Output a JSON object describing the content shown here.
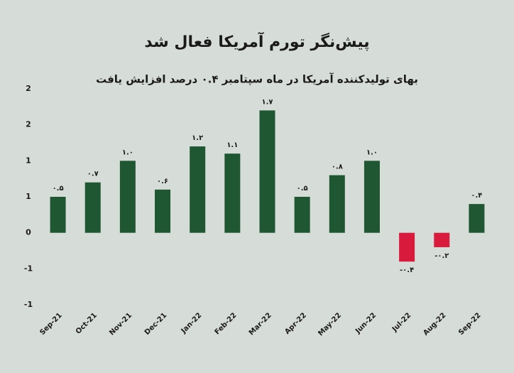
{
  "chart_data": {
    "type": "bar",
    "title": "پیش‌نگر تورم آمریکا فعال شد",
    "subtitle": "بهای تولیدکننده آمریکا در ماه سپتامبر ۰.۴ درصد افزایش یافت",
    "categories": [
      "Sep-21",
      "Oct-21",
      "Nov-21",
      "Dec-21",
      "Jan-22",
      "Feb-22",
      "Mar-22",
      "Apr-22",
      "May-22",
      "Jun-22",
      "Jul-22",
      "Aug-22",
      "Sep-22"
    ],
    "values": [
      0.5,
      0.7,
      1.0,
      0.6,
      1.2,
      1.1,
      1.7,
      0.5,
      0.8,
      1.0,
      -0.4,
      -0.2,
      0.4
    ],
    "value_labels": [
      "۰.۵",
      "۰.۷",
      "۱.۰",
      "۰.۶",
      "۱.۲",
      "۱.۱",
      "۱.۷",
      "۰.۵",
      "۰.۸",
      "۱.۰",
      "-۰.۴",
      "-۰.۲",
      "۰.۴"
    ],
    "color": "#1f5732",
    "negative_color": "#d81a3c",
    "ylim": [
      -1,
      2
    ],
    "yticks": [
      {
        "value": -1,
        "label": "-1"
      },
      {
        "value": -0.5,
        "label": "-1"
      },
      0,
      {
        "value": 0.5,
        "label": "1"
      },
      1,
      {
        "value": 1.5,
        "label": "2"
      },
      2
    ],
    "grid": false
  }
}
